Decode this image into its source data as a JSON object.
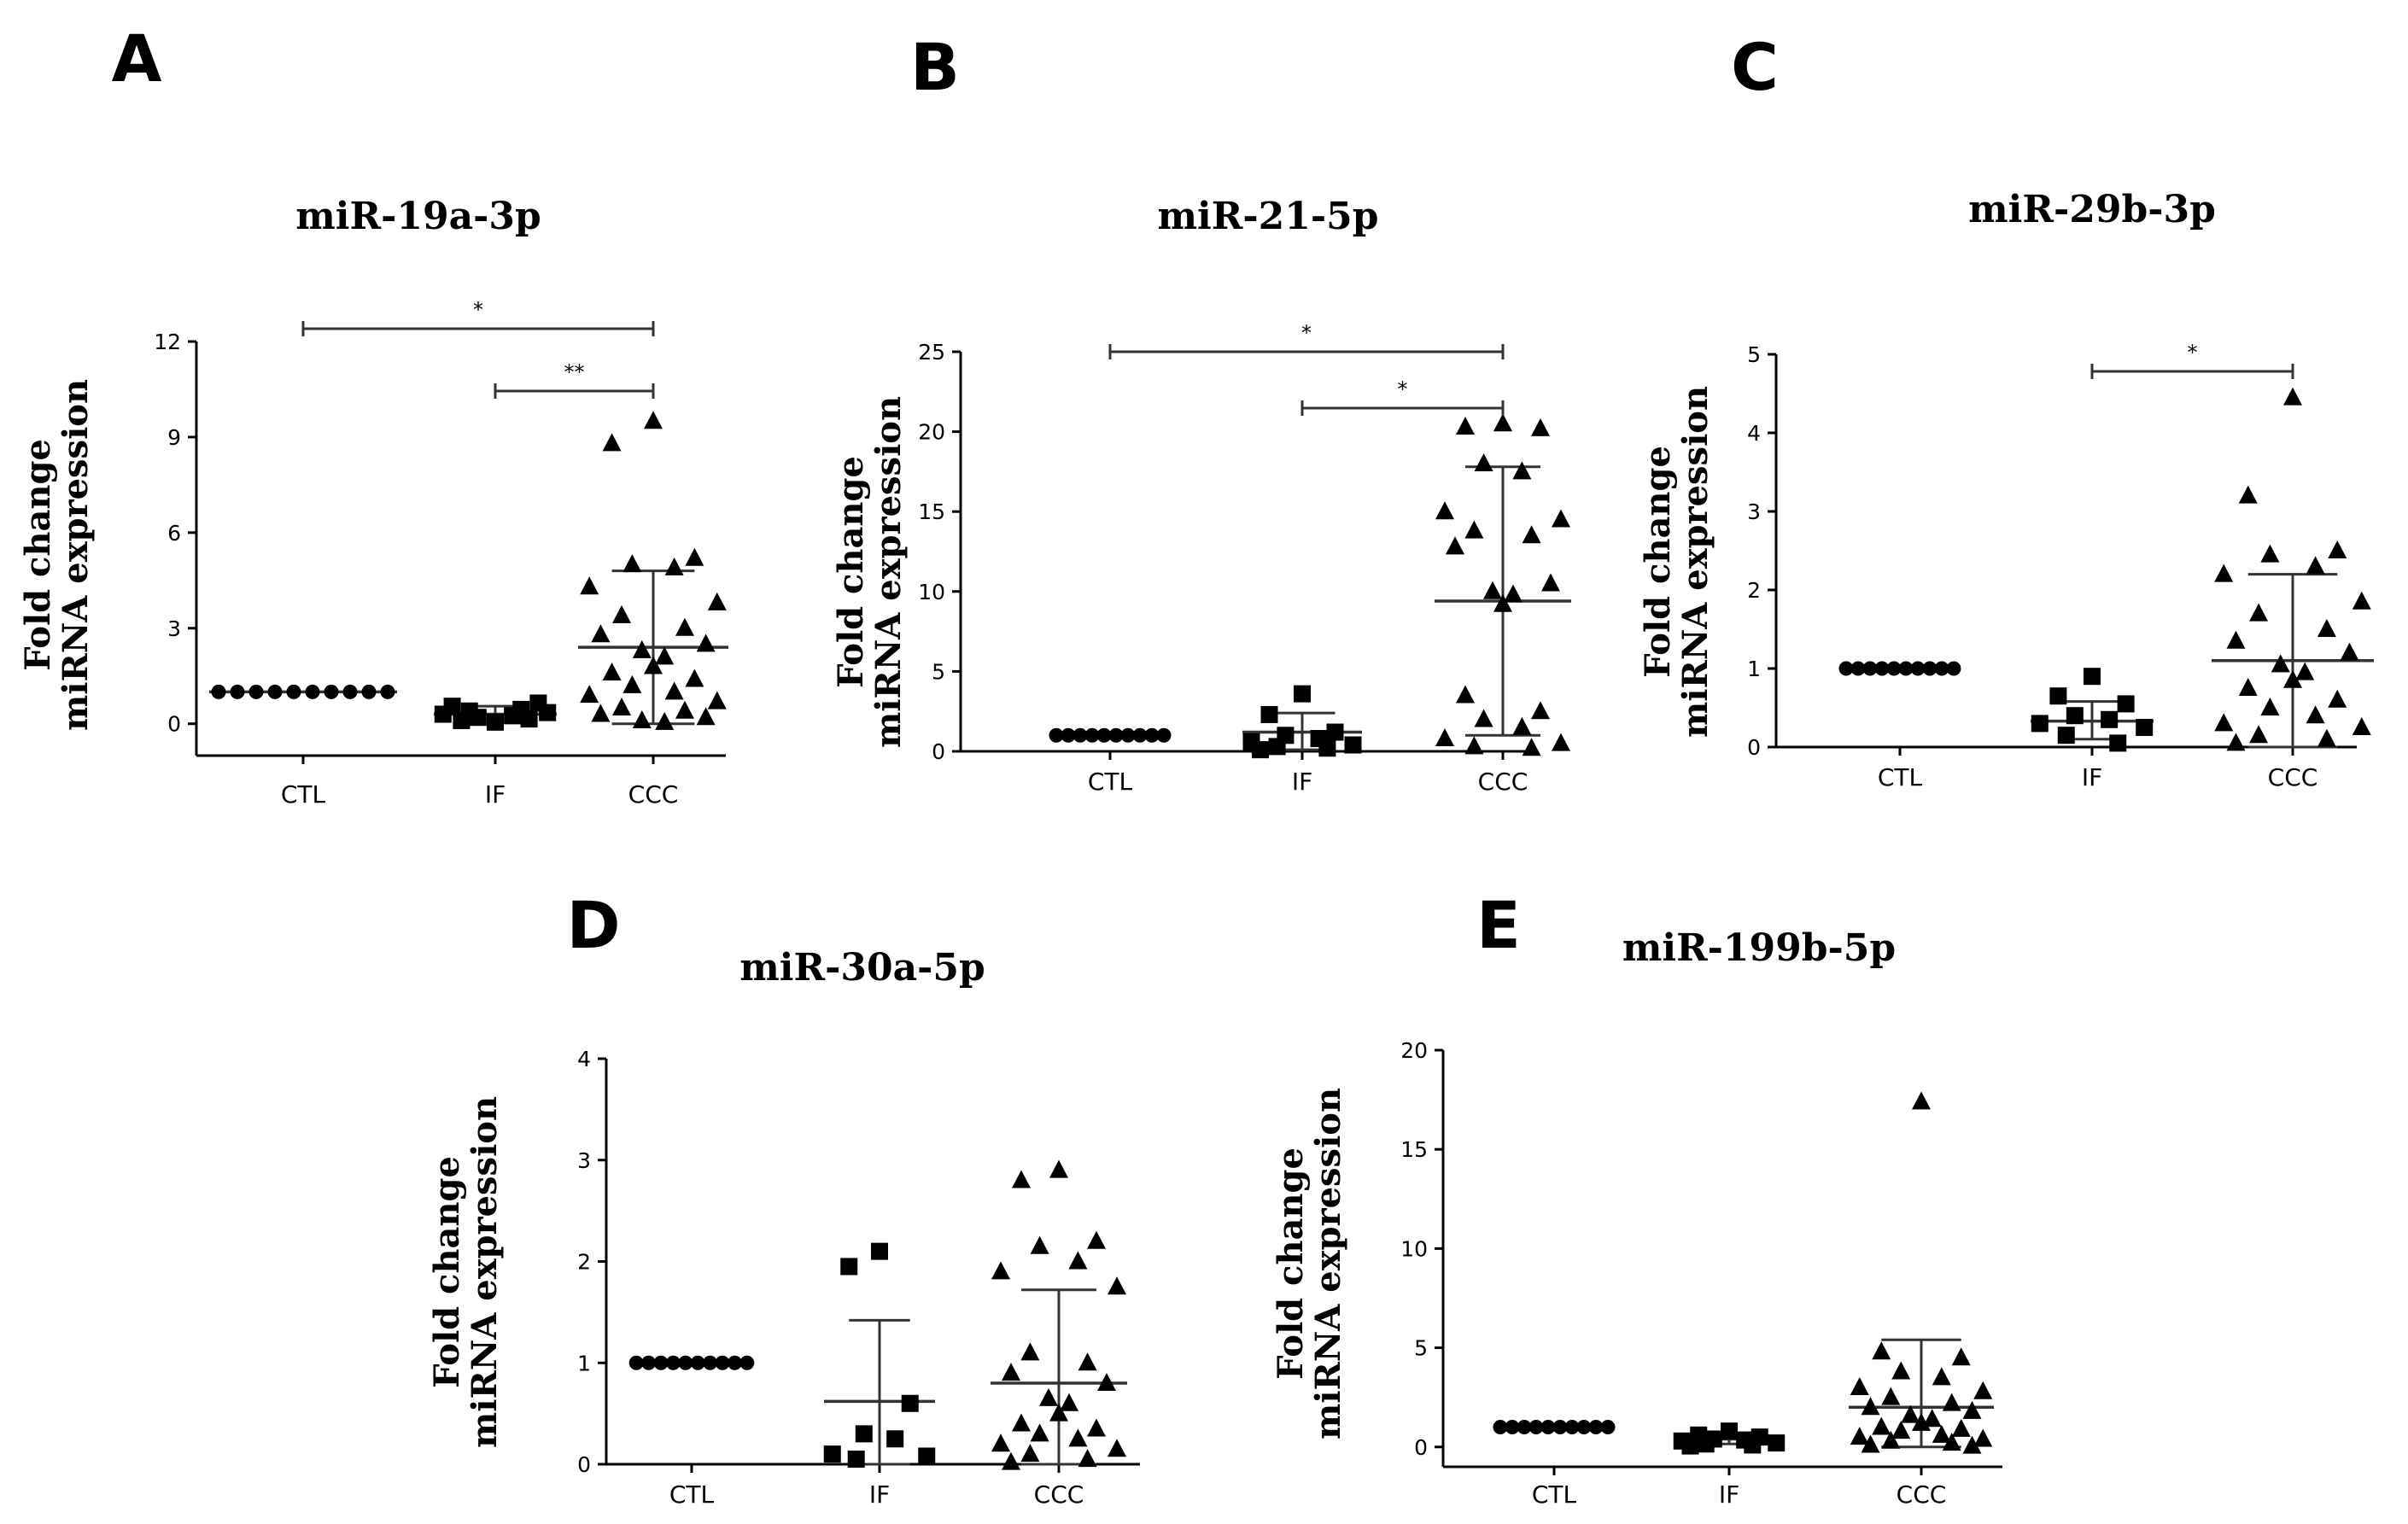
{
  "figure": {
    "colors": {
      "marks": "#000000",
      "error_bars": "#333333",
      "background": "#ffffff"
    }
  },
  "chart_data": [
    {
      "panel": "A",
      "type": "scatter",
      "title": "miR-19a-3p",
      "ylabel_lines": [
        "Fold change",
        "miRNA expression"
      ],
      "categories": [
        "CTL",
        "IF",
        "CCC"
      ],
      "ylim": [
        -1,
        12
      ],
      "yticks": [
        0,
        3,
        6,
        9,
        12
      ],
      "groups": [
        {
          "name": "CTL",
          "marker": "circle",
          "mean": 1.0,
          "sd_low": 1.0,
          "sd_high": 1.0,
          "values": [
            1,
            1,
            1,
            1,
            1,
            1,
            1,
            1,
            1,
            1
          ]
        },
        {
          "name": "IF",
          "marker": "square",
          "mean": 0.3,
          "sd_low": 0.1,
          "sd_high": 0.55,
          "values": [
            0.05,
            0.1,
            0.15,
            0.2,
            0.25,
            0.3,
            0.35,
            0.4,
            0.45,
            0.55,
            0.65
          ]
        },
        {
          "name": "CCC",
          "marker": "triangle",
          "mean": 2.4,
          "sd_low": 0.0,
          "sd_high": 4.8,
          "values": [
            9.5,
            8.8,
            5.2,
            5.0,
            4.9,
            4.3,
            3.8,
            3.4,
            3.0,
            2.8,
            2.5,
            2.3,
            2.1,
            1.8,
            1.6,
            1.4,
            1.2,
            1.0,
            0.9,
            0.7,
            0.5,
            0.4,
            0.3,
            0.2,
            0.1,
            0.05
          ]
        }
      ],
      "significance": [
        {
          "from": "IF",
          "to": "CCC",
          "label": "**"
        },
        {
          "from": "CTL",
          "to": "CCC",
          "label": "*"
        }
      ]
    },
    {
      "panel": "B",
      "type": "scatter",
      "title": "miR-21-5p",
      "ylabel_lines": [
        "Fold change",
        "miRNA expression"
      ],
      "categories": [
        "CTL",
        "IF",
        "CCC"
      ],
      "ylim": [
        0,
        25
      ],
      "yticks": [
        0,
        5,
        10,
        15,
        20,
        25
      ],
      "groups": [
        {
          "name": "CTL",
          "marker": "circle",
          "mean": 1.0,
          "sd_low": 1.0,
          "sd_high": 1.0,
          "values": [
            1,
            1,
            1,
            1,
            1,
            1,
            1,
            1,
            1,
            1
          ]
        },
        {
          "name": "IF",
          "marker": "square",
          "mean": 1.2,
          "sd_low": 0.1,
          "sd_high": 2.4,
          "values": [
            3.6,
            2.3,
            1.2,
            1.0,
            0.8,
            0.6,
            0.4,
            0.3,
            0.2,
            0.1
          ]
        },
        {
          "name": "CCC",
          "marker": "triangle",
          "mean": 9.4,
          "sd_low": 1.0,
          "sd_high": 17.8,
          "values": [
            20.5,
            20.3,
            20.2,
            18.0,
            17.5,
            15.0,
            14.5,
            13.8,
            13.5,
            12.8,
            10.5,
            10.0,
            9.8,
            9.2,
            3.5,
            2.5,
            2.0,
            1.5,
            0.8,
            0.5,
            0.3,
            0.2
          ]
        }
      ],
      "significance": [
        {
          "from": "IF",
          "to": "CCC",
          "label": "*"
        },
        {
          "from": "CTL",
          "to": "CCC",
          "label": "*"
        }
      ]
    },
    {
      "panel": "C",
      "type": "scatter",
      "title": "miR-29b-3p",
      "ylabel_lines": [
        "Fold change",
        "miRNA expression"
      ],
      "categories": [
        "CTL",
        "IF",
        "CCC"
      ],
      "ylim": [
        0,
        5
      ],
      "yticks": [
        0,
        1,
        2,
        3,
        4,
        5
      ],
      "groups": [
        {
          "name": "CTL",
          "marker": "circle",
          "mean": 1.0,
          "sd_low": 1.0,
          "sd_high": 1.0,
          "values": [
            1,
            1,
            1,
            1,
            1,
            1,
            1,
            1,
            1,
            1
          ]
        },
        {
          "name": "IF",
          "marker": "square",
          "mean": 0.33,
          "sd_low": 0.1,
          "sd_high": 0.58,
          "values": [
            0.9,
            0.65,
            0.55,
            0.4,
            0.35,
            0.3,
            0.25,
            0.15,
            0.05
          ]
        },
        {
          "name": "CCC",
          "marker": "triangle",
          "mean": 1.1,
          "sd_low": 0.0,
          "sd_high": 2.2,
          "values": [
            4.45,
            3.2,
            2.5,
            2.45,
            2.3,
            2.2,
            1.85,
            1.7,
            1.5,
            1.35,
            1.2,
            1.05,
            0.95,
            0.85,
            0.75,
            0.6,
            0.5,
            0.4,
            0.3,
            0.25,
            0.15,
            0.1,
            0.05
          ]
        }
      ],
      "significance": [
        {
          "from": "IF",
          "to": "CCC",
          "label": "*"
        }
      ]
    },
    {
      "panel": "D",
      "type": "scatter",
      "title": "miR-30a-5p",
      "ylabel_lines": [
        "Fold change",
        "miRNA expression"
      ],
      "categories": [
        "CTL",
        "IF",
        "CCC"
      ],
      "ylim": [
        0,
        4
      ],
      "yticks": [
        0,
        1,
        2,
        3,
        4
      ],
      "groups": [
        {
          "name": "CTL",
          "marker": "circle",
          "mean": 1.0,
          "sd_low": 1.0,
          "sd_high": 1.0,
          "values": [
            1,
            1,
            1,
            1,
            1,
            1,
            1,
            1,
            1,
            1
          ]
        },
        {
          "name": "IF",
          "marker": "square",
          "mean": 0.62,
          "sd_low": 0.0,
          "sd_high": 1.42,
          "values": [
            2.1,
            1.95,
            0.6,
            0.3,
            0.25,
            0.1,
            0.08,
            0.05
          ]
        },
        {
          "name": "CCC",
          "marker": "triangle",
          "mean": 0.8,
          "sd_low": 0.0,
          "sd_high": 1.72,
          "values": [
            2.9,
            2.8,
            2.2,
            2.15,
            2.0,
            1.9,
            1.75,
            1.1,
            1.0,
            0.9,
            0.8,
            0.65,
            0.6,
            0.5,
            0.4,
            0.35,
            0.3,
            0.25,
            0.2,
            0.15,
            0.1,
            0.05,
            0.02
          ]
        }
      ],
      "significance": []
    },
    {
      "panel": "E",
      "type": "scatter",
      "title": "miR-199b-5p",
      "ylabel_lines": [
        "Fold change",
        "miRNA expression"
      ],
      "categories": [
        "CTL",
        "IF",
        "CCC"
      ],
      "ylim": [
        -1,
        20
      ],
      "yticks": [
        0,
        5,
        10,
        15,
        20
      ],
      "groups": [
        {
          "name": "CTL",
          "marker": "circle",
          "mean": 1.0,
          "sd_low": 1.0,
          "sd_high": 1.0,
          "values": [
            1,
            1,
            1,
            1,
            1,
            1,
            1,
            1,
            1,
            1
          ]
        },
        {
          "name": "IF",
          "marker": "square",
          "mean": 0.4,
          "sd_low": 0.15,
          "sd_high": 0.65,
          "values": [
            0.8,
            0.6,
            0.5,
            0.4,
            0.35,
            0.3,
            0.2,
            0.15,
            0.1,
            0.05
          ]
        },
        {
          "name": "CCC",
          "marker": "triangle",
          "mean": 2.0,
          "sd_low": 0.0,
          "sd_high": 5.4,
          "values": [
            17.4,
            4.8,
            4.5,
            3.8,
            3.5,
            3.0,
            2.8,
            2.5,
            2.2,
            2.0,
            1.8,
            1.6,
            1.4,
            1.2,
            1.0,
            0.9,
            0.8,
            0.6,
            0.5,
            0.4,
            0.3,
            0.2,
            0.1,
            0.05
          ]
        }
      ],
      "significance": []
    }
  ]
}
